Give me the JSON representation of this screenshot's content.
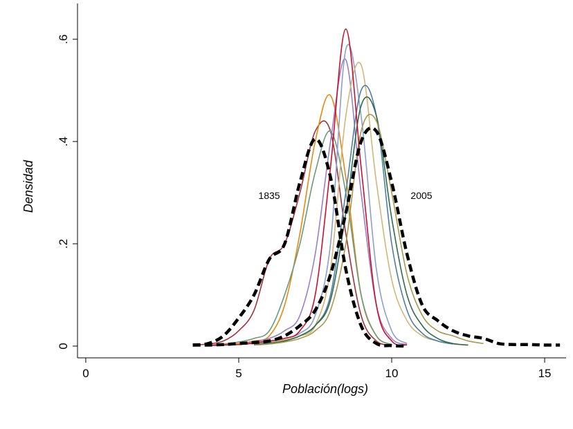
{
  "chart_data": {
    "type": "line",
    "x_label": "Población(logs)",
    "y_label": "Densidad",
    "annotations": [
      "1835",
      "2005"
    ],
    "xlim": [
      -0.27,
      15.7
    ],
    "ylim": [
      -0.023,
      0.67
    ],
    "xticks": [
      0,
      5,
      10,
      15
    ],
    "yticks": [
      0,
      {
        "value": 0.2,
        "label": ".2"
      },
      {
        "value": 0.4,
        "label": ".4"
      },
      {
        "value": 0.6,
        "label": ".6"
      }
    ],
    "x": [
      3.5,
      4,
      4.5,
      5,
      5.5,
      6,
      6.5,
      7,
      7.5,
      8,
      8.5,
      9,
      9.5,
      10,
      10.5,
      11,
      11.5,
      12,
      12.5,
      13,
      13.5,
      14,
      14.5,
      15,
      15.5
    ],
    "series": [
      {
        "color": "#a0303a",
        "values": [
          0.002,
          0.004,
          0.01,
          0.03,
          0.07,
          0.17,
          0.2,
          0.3,
          0.42,
          0.42,
          0.22,
          0.06,
          0.01,
          0.002,
          null,
          null,
          null,
          null,
          null,
          null,
          null,
          null,
          null,
          null,
          null
        ]
      },
      {
        "color": "#e8870e",
        "values": [
          null,
          0.002,
          0.003,
          0.005,
          0.01,
          0.02,
          0.08,
          0.22,
          0.4,
          0.49,
          0.33,
          0.1,
          0.02,
          0.003,
          null,
          null,
          null,
          null,
          null,
          null,
          null,
          null,
          null,
          null,
          null
        ]
      },
      {
        "color": "#6a9a7c",
        "values": [
          null,
          0.002,
          0.004,
          0.008,
          0.015,
          0.03,
          0.1,
          0.2,
          0.34,
          0.42,
          0.3,
          0.1,
          0.02,
          0.003,
          null,
          null,
          null,
          null,
          null,
          null,
          null,
          null,
          null,
          null,
          null
        ]
      },
      {
        "color": "#9a7fc8",
        "values": [
          null,
          null,
          null,
          0.004,
          0.008,
          0.015,
          0.03,
          0.06,
          0.18,
          0.4,
          0.56,
          0.3,
          0.08,
          0.015,
          0.003,
          null,
          null,
          null,
          null,
          null,
          null,
          null,
          null,
          null,
          null
        ]
      },
      {
        "color": "#8c9ecb",
        "values": [
          null,
          null,
          null,
          0.003,
          0.006,
          0.01,
          0.015,
          0.025,
          0.06,
          0.2,
          0.58,
          0.45,
          0.15,
          0.03,
          0.005,
          null,
          null,
          null,
          null,
          null,
          null,
          null,
          null,
          null,
          null
        ]
      },
      {
        "color": "#d2b577",
        "values": [
          null,
          null,
          null,
          0.003,
          0.005,
          0.008,
          0.012,
          0.02,
          0.04,
          0.15,
          0.45,
          0.55,
          0.32,
          0.13,
          0.05,
          0.02,
          0.01,
          0.004,
          0.002,
          null,
          null,
          null,
          null,
          null,
          null
        ]
      },
      {
        "color": "#4f7fa0",
        "values": [
          null,
          null,
          null,
          null,
          0.003,
          0.006,
          0.01,
          0.02,
          0.04,
          0.1,
          0.3,
          0.5,
          0.45,
          0.2,
          0.07,
          0.025,
          0.01,
          0.004,
          null,
          null,
          null,
          null,
          null,
          null,
          null
        ]
      },
      {
        "color": "#2f6b4e",
        "values": [
          null,
          null,
          null,
          null,
          0.003,
          0.005,
          0.01,
          0.02,
          0.04,
          0.09,
          0.26,
          0.47,
          0.45,
          0.25,
          0.1,
          0.04,
          0.015,
          0.005,
          0.002,
          null,
          null,
          null,
          null,
          null,
          null
        ]
      },
      {
        "color": "#a8994a",
        "values": [
          null,
          null,
          null,
          null,
          0.002,
          0.004,
          0.008,
          0.015,
          0.03,
          0.07,
          0.2,
          0.42,
          0.44,
          0.3,
          0.14,
          0.06,
          0.03,
          0.02,
          0.01,
          0.005,
          null,
          null,
          null,
          null,
          null
        ]
      },
      {
        "color": "#c8102e",
        "values": [
          null,
          0.001,
          0.002,
          0.003,
          0.006,
          0.01,
          0.015,
          0.03,
          0.1,
          0.35,
          0.62,
          0.35,
          0.08,
          0.01,
          0.002,
          null,
          null,
          null,
          null,
          null,
          null,
          null,
          null,
          null,
          null
        ]
      },
      {
        "color": "#000000",
        "dashed": true,
        "values": [
          0.002,
          0.005,
          0.02,
          0.055,
          0.1,
          0.17,
          0.2,
          0.32,
          0.405,
          0.33,
          0.15,
          0.04,
          0.005,
          0.001,
          0,
          null,
          null,
          null,
          null,
          null,
          null,
          null,
          null,
          null,
          null
        ]
      },
      {
        "color": "#000000",
        "dashed": true,
        "values": [
          0.002,
          0.002,
          0.003,
          0.005,
          0.007,
          0.01,
          0.02,
          0.04,
          0.07,
          0.14,
          0.26,
          0.4,
          0.42,
          0.32,
          0.18,
          0.08,
          0.05,
          0.03,
          0.02,
          0.015,
          0.005,
          0.003,
          0.003,
          0.002,
          0.002
        ]
      }
    ]
  }
}
